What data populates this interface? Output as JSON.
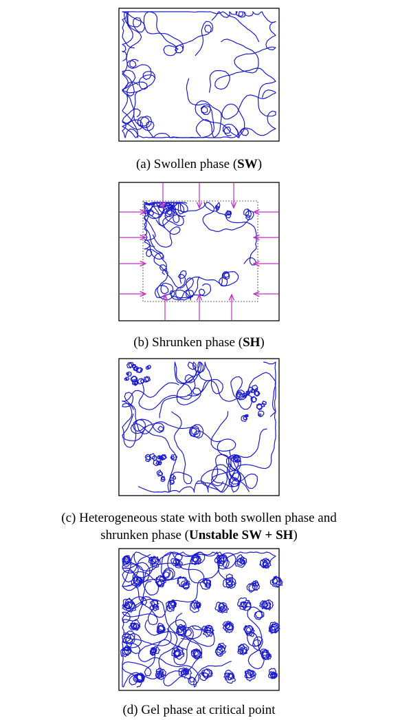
{
  "panels": [
    {
      "caption": [
        "(a) Swollen phase (",
        "SW",
        ")"
      ]
    },
    {
      "caption": [
        "(b) Shrunken phase (",
        "SH",
        ")"
      ]
    },
    {
      "caption": [
        "(c) Heterogeneous state with both swollen phase and",
        "shrunken phase (",
        "Unstable SW + SH",
        ")"
      ]
    },
    {
      "caption": [
        "(d) Gel phase at critical point"
      ]
    }
  ]
}
